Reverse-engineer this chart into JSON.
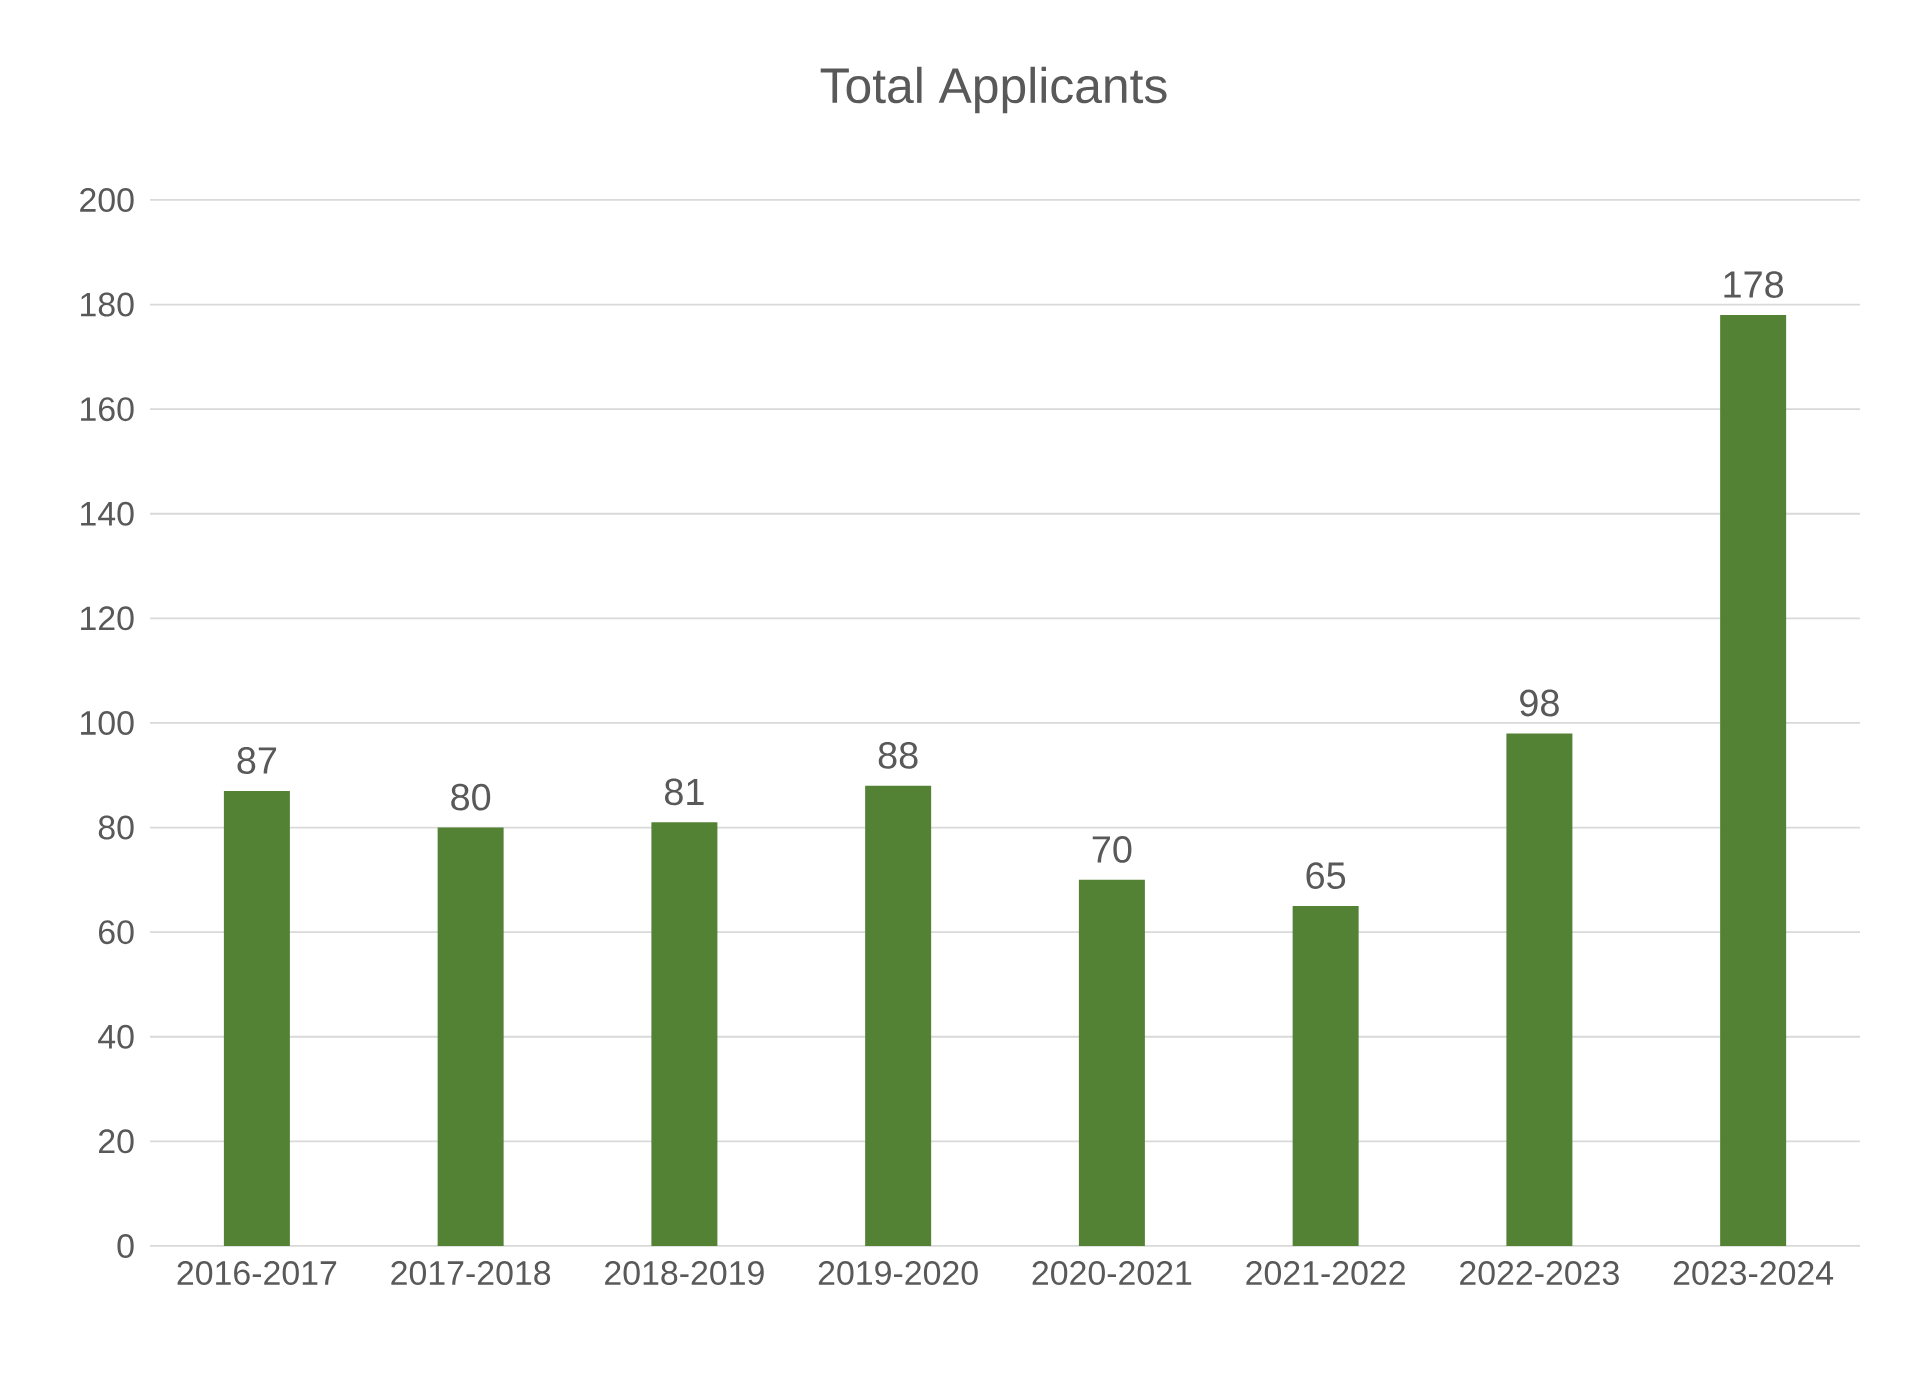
{
  "chart_data": {
    "type": "bar",
    "title": "Total Applicants",
    "categories": [
      "2016-2017",
      "2017-2018",
      "2018-2019",
      "2019-2020",
      "2020-2021",
      "2021-2022",
      "2022-2023",
      "2023-2024"
    ],
    "values": [
      87,
      80,
      81,
      88,
      70,
      65,
      98,
      178
    ],
    "color": "#548235",
    "ylim": [
      0,
      200
    ],
    "yticks": [
      0,
      20,
      40,
      60,
      80,
      100,
      120,
      140,
      160,
      180,
      200
    ],
    "grid": "y",
    "data_labels": true
  }
}
